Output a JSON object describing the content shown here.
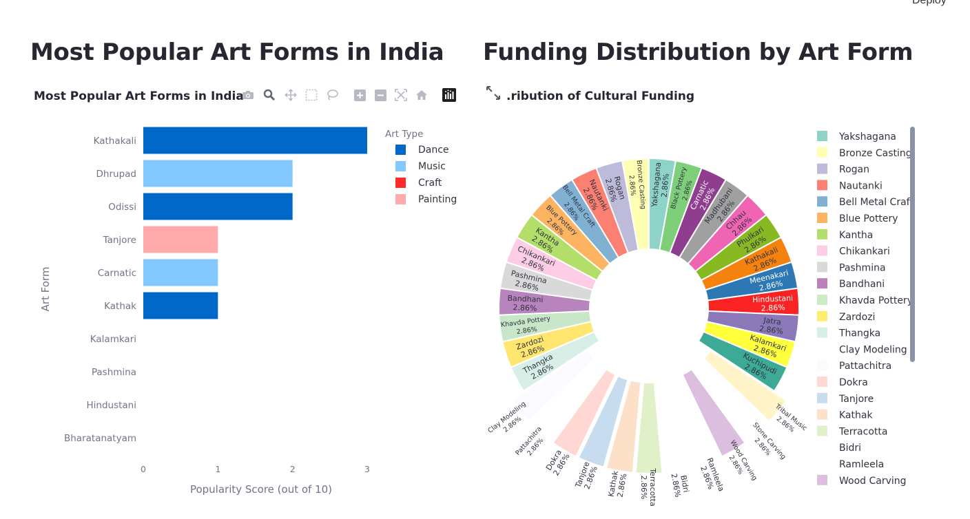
{
  "header": {
    "deploy_label": "Deploy"
  },
  "left": {
    "heading": "Most Popular Art Forms in India",
    "chart_title": "Most Popular Art Forms in India"
  },
  "right": {
    "heading": "Funding Distribution by Art Form",
    "chart_title": ".ribution of Cultural Funding"
  },
  "toolbar": {
    "icons": [
      "camera-icon",
      "zoom-icon",
      "pan-icon",
      "box-select-icon",
      "lasso-select-icon",
      "zoom-in-icon",
      "zoom-out-icon",
      "autoscale-icon",
      "reset-axes-icon",
      "plotly-logo-icon"
    ]
  },
  "chart_data": [
    {
      "type": "bar",
      "orientation": "horizontal",
      "title": "Most Popular Art Forms in India",
      "xlabel": "Popularity Score (out of 10)",
      "ylabel": "Art Form",
      "xlim": [
        0,
        3
      ],
      "xticks": [
        "0",
        "1",
        "2",
        "3"
      ],
      "legend_title": "Art Type",
      "legend_position": "right",
      "legend": [
        {
          "name": "Dance",
          "color": "#0068c9"
        },
        {
          "name": "Music",
          "color": "#83c9ff"
        },
        {
          "name": "Craft",
          "color": "#ff2b2b"
        },
        {
          "name": "Painting",
          "color": "#ffabab"
        }
      ],
      "categories": [
        "Kathakali",
        "Dhrupad",
        "Odissi",
        "Tanjore",
        "Carnatic",
        "Kathak",
        "Kalamkari",
        "Pashmina",
        "Hindustani",
        "Bharatanatyam"
      ],
      "values": [
        3,
        2,
        2,
        1,
        1,
        1,
        0,
        0,
        0,
        0
      ],
      "bar_types": [
        "Dance",
        "Music",
        "Dance",
        "Painting",
        "Music",
        "Dance",
        "",
        "",
        "",
        ""
      ],
      "grid": false
    },
    {
      "type": "pie",
      "donut": true,
      "title": ".ribution of Cultural Funding",
      "legend_position": "right",
      "slices": [
        {
          "label": "Yakshagana",
          "value": 2.86,
          "color": "#8dd3c7"
        },
        {
          "label": "Black Pottery",
          "value": 2.86,
          "color": "#7fcf7a"
        },
        {
          "label": "Carnatic",
          "value": 2.86,
          "color": "#8e3d8f"
        },
        {
          "label": "Madhubani",
          "value": 2.86,
          "color": "#a0a0a0"
        },
        {
          "label": "Chhau",
          "value": 2.86,
          "color": "#f064b4"
        },
        {
          "label": "Phulkari",
          "value": 2.86,
          "color": "#88b822"
        },
        {
          "label": "Kathakali",
          "value": 2.86,
          "color": "#f5820d"
        },
        {
          "label": "Meenakari",
          "value": 2.86,
          "color": "#2d78b4"
        },
        {
          "label": "Hindustani",
          "value": 2.86,
          "color": "#fa2323"
        },
        {
          "label": "Jatra",
          "value": 2.86,
          "color": "#8a78b8"
        },
        {
          "label": "Kalamkari",
          "value": 2.86,
          "color": "#ffff3c"
        },
        {
          "label": "Kuchipudi",
          "value": 2.86,
          "color": "#3caa96"
        },
        {
          "label": "Tribal Music",
          "value": 2.86,
          "color": "#fff5c8"
        },
        {
          "label": "Stone Carving",
          "value": 2.86,
          "color": "#ffffff"
        },
        {
          "label": "Wood Carving",
          "value": 2.86,
          "color": "#dcbede"
        },
        {
          "label": "Ramleela",
          "value": 2.86,
          "color": "#ffffff"
        },
        {
          "label": "Bidri",
          "value": 2.86,
          "color": "#ffffff"
        },
        {
          "label": "Terracotta",
          "value": 2.86,
          "color": "#e0f0c8"
        },
        {
          "label": "Kathak",
          "value": 2.86,
          "color": "#fde0c8"
        },
        {
          "label": "Tanjore",
          "value": 2.86,
          "color": "#c8dcf0"
        },
        {
          "label": "Dokra",
          "value": 2.86,
          "color": "#ffd8d4"
        },
        {
          "label": "Pattachitra",
          "value": 2.86,
          "color": "#ffffff"
        },
        {
          "label": "Clay Modeling",
          "value": 2.86,
          "color": "#fbfbff"
        },
        {
          "label": "Thangka",
          "value": 2.86,
          "color": "#d8efe8"
        },
        {
          "label": "Zardozi",
          "value": 2.86,
          "color": "#ffe66e"
        },
        {
          "label": "Khavda Pottery",
          "value": 2.86,
          "color": "#c8e6c8"
        },
        {
          "label": "Bandhani",
          "value": 2.86,
          "color": "#b884be"
        },
        {
          "label": "Pashmina",
          "value": 2.86,
          "color": "#d9d9d9"
        },
        {
          "label": "Chikankari",
          "value": 2.86,
          "color": "#fccde5"
        },
        {
          "label": "Kantha",
          "value": 2.86,
          "color": "#b3de69"
        },
        {
          "label": "Blue Pottery",
          "value": 2.86,
          "color": "#fdb462"
        },
        {
          "label": "Bell Metal Craft",
          "value": 2.86,
          "color": "#80b1d3"
        },
        {
          "label": "Nautanki",
          "value": 2.86,
          "color": "#fb8072"
        },
        {
          "label": "Rogan",
          "value": 2.86,
          "color": "#bebada"
        },
        {
          "label": "Bronze Casting",
          "value": 2.86,
          "color": "#ffffb3"
        }
      ],
      "legend": [
        {
          "name": "Yakshagana",
          "color": "#8dd3c7"
        },
        {
          "name": "Bronze Casting",
          "color": "#ffffb3"
        },
        {
          "name": "Rogan",
          "color": "#bebada"
        },
        {
          "name": "Nautanki",
          "color": "#fb8072"
        },
        {
          "name": "Bell Metal Craft",
          "color": "#80b1d3"
        },
        {
          "name": "Blue Pottery",
          "color": "#fdb462"
        },
        {
          "name": "Kantha",
          "color": "#b3de69"
        },
        {
          "name": "Chikankari",
          "color": "#fccde5"
        },
        {
          "name": "Pashmina",
          "color": "#d9d9d9"
        },
        {
          "name": "Bandhani",
          "color": "#bc80bd"
        },
        {
          "name": "Khavda Pottery",
          "color": "#ccebc5"
        },
        {
          "name": "Zardozi",
          "color": "#ffed6f"
        },
        {
          "name": "Thangka",
          "color": "#d7efe9"
        },
        {
          "name": "Clay Modeling",
          "color": "#ffffff"
        },
        {
          "name": "Pattachitra",
          "color": "#fbfbfb"
        },
        {
          "name": "Dokra",
          "color": "#ffd8d4"
        },
        {
          "name": "Tanjore",
          "color": "#c8dcf0"
        },
        {
          "name": "Kathak",
          "color": "#fde0c8"
        },
        {
          "name": "Terracotta",
          "color": "#e0f0c8"
        },
        {
          "name": "Bidri",
          "color": "#ffffff"
        },
        {
          "name": "Ramleela",
          "color": "#ffffff"
        },
        {
          "name": "Wood Carving",
          "color": "#dcbede"
        }
      ]
    }
  ]
}
